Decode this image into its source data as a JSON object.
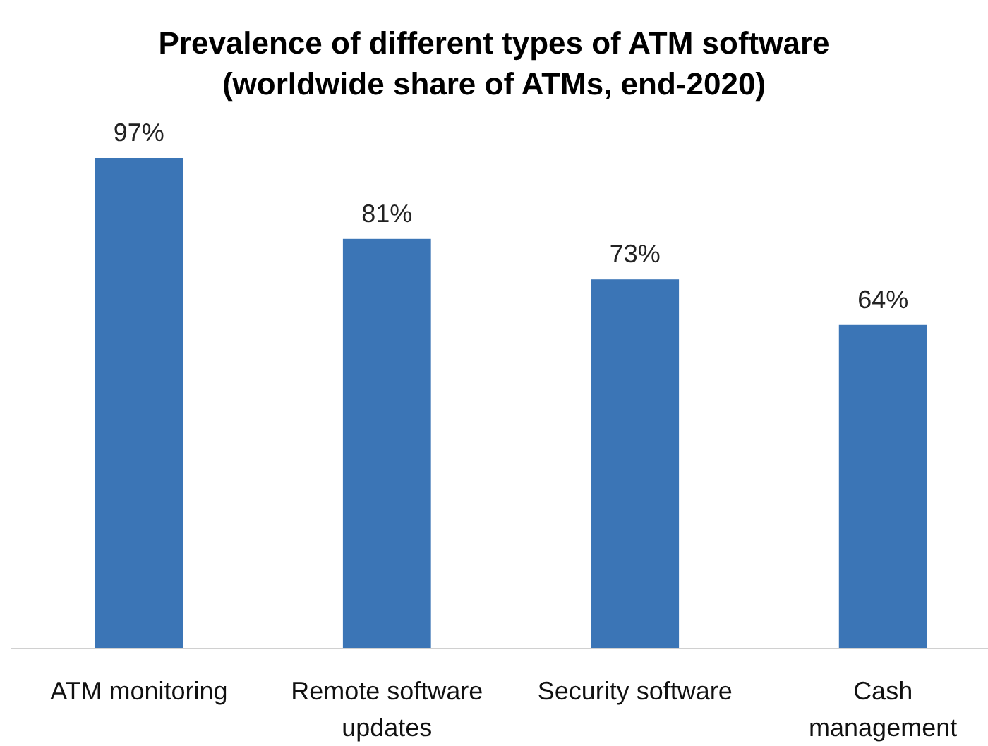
{
  "chart_data": {
    "type": "bar",
    "title": "Prevalence of different types of ATM software\n(worldwide share of ATMs, end-2020)",
    "categories": [
      "ATM monitoring",
      "Remote software updates",
      "Security software",
      "Cash management"
    ],
    "values": [
      97,
      81,
      73,
      64
    ],
    "color": "#3b75b6",
    "data_labels": true,
    "value_labels": [
      "97%",
      "81%",
      "73%",
      "64%"
    ]
  }
}
